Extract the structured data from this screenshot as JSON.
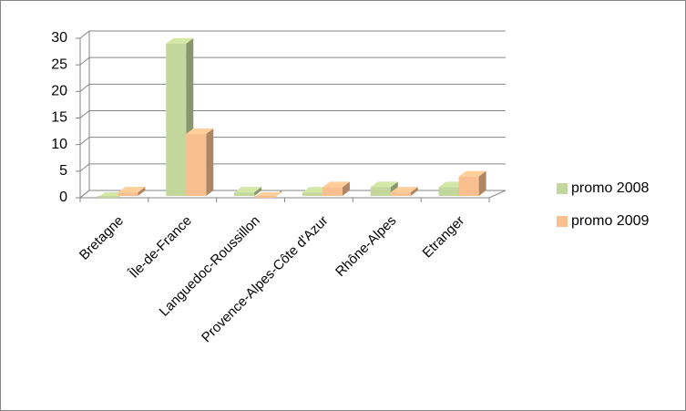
{
  "chart_data": {
    "type": "bar3d",
    "categories": [
      "Bretagne",
      "Île-de-France",
      "Languedoc-Roussillon",
      "Provence-Alpes-Côte d'Azur",
      "Rhône-Alpes",
      "Etranger"
    ],
    "series": [
      {
        "name": "promo 2008",
        "color": "#c3d69b",
        "values": [
          0,
          29,
          1,
          1,
          2,
          2
        ]
      },
      {
        "name": "promo 2009",
        "color": "#fabf8f",
        "values": [
          1,
          12,
          0,
          2,
          1,
          4
        ]
      }
    ],
    "ylim": [
      0,
      30
    ],
    "yticks": [
      0,
      5,
      10,
      15,
      20,
      25,
      30
    ],
    "grid": true,
    "legend": "right"
  }
}
